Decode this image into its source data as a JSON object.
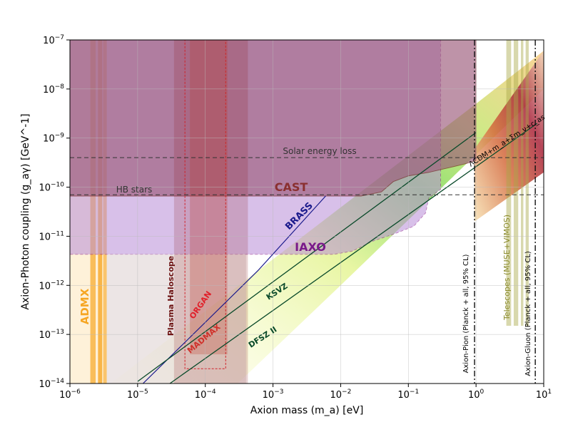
{
  "chart_data": {
    "type": "area",
    "title": "",
    "xlabel": "Axion mass (m_a) [eV]",
    "ylabel": "Axion-Photon coupling (g_aγ) [GeV^-1]",
    "xscale": "log",
    "yscale": "log",
    "xlim": [
      1e-06,
      10
    ],
    "ylim": [
      1e-14,
      1e-07
    ],
    "grid": true,
    "xticks": [
      {
        "base": "10",
        "exp": "−6"
      },
      {
        "base": "10",
        "exp": "−5"
      },
      {
        "base": "10",
        "exp": "−4"
      },
      {
        "base": "10",
        "exp": "−3"
      },
      {
        "base": "10",
        "exp": "−2"
      },
      {
        "base": "10",
        "exp": "−1"
      },
      {
        "base": "10",
        "exp": "0"
      },
      {
        "base": "10",
        "exp": "1"
      }
    ],
    "yticks": [
      {
        "base": "10",
        "exp": "−14"
      },
      {
        "base": "10",
        "exp": "−13"
      },
      {
        "base": "10",
        "exp": "−12"
      },
      {
        "base": "10",
        "exp": "−11"
      },
      {
        "base": "10",
        "exp": "−10"
      },
      {
        "base": "10",
        "exp": "−9"
      },
      {
        "base": "10",
        "exp": "−8"
      },
      {
        "base": "10",
        "exp": "−7"
      }
    ],
    "labels": {
      "admx": "ADMX",
      "plasma_haloscope": "Plasma Haloscope",
      "organ": "ORGAN",
      "madmax": "MADMAX",
      "brass": "BRASS",
      "iaxo": "IAXO",
      "cast": "CAST",
      "solar": "Solar energy loss",
      "hb": "HB stars",
      "ksvz": "KSVZ",
      "dfsz": "DFSZ II",
      "pion": "Axion-Pion (Planck + all, 95% CL)",
      "gluon": "Axion-Gluon (Planck + all, 95% CL)",
      "telescopes": "Telescopes (MUSE+VIMOS)",
      "lcdm": "ΛCDM+m_a+Σm_ν+c_as"
    },
    "reference_lines": {
      "solar_energy_loss_g": 4e-10,
      "hb_stars_g": 7e-11,
      "axion_pion_mass_eV": 0.95,
      "axion_gluon_mass_eV": 7.5
    },
    "cast_boundary": [
      [
        1e-06,
        6.6e-11
      ],
      [
        0.02,
        6.6e-11
      ],
      [
        0.04,
        8e-11
      ],
      [
        0.06,
        1.3e-10
      ],
      [
        0.1,
        1.7e-10
      ],
      [
        0.2,
        2e-10
      ],
      [
        0.4,
        2.5e-10
      ],
      [
        0.7,
        3e-10
      ],
      [
        1.0,
        3.5e-10
      ]
    ],
    "iaxo_boundary": [
      [
        1e-06,
        4.3e-12
      ],
      [
        0.008,
        4.3e-12
      ],
      [
        0.015,
        5e-12
      ],
      [
        0.03,
        8e-12
      ],
      [
        0.06,
        1.1e-11
      ],
      [
        0.12,
        1.6e-11
      ],
      [
        0.18,
        3e-11
      ],
      [
        0.2,
        6e-11
      ],
      [
        0.3,
        9e-11
      ]
    ],
    "brass_line": [
      [
        1.2e-05,
        1e-14
      ],
      [
        0.0006,
        2e-12
      ],
      [
        0.006,
        6.6e-11
      ]
    ],
    "ksvz_line": [
      [
        1e-05,
        1.1e-14
      ],
      [
        1.0,
        1.3e-09
      ]
    ],
    "dfsz_line": [
      [
        3e-05,
        1e-14
      ],
      [
        8.0,
        2e-09
      ]
    ],
    "plasma_haloscope_mass_range_eV": [
      3.5e-05,
      0.00042
    ],
    "organ_mass_range_eV": [
      6e-05,
      0.00021
    ],
    "madmax_mass_range_eV": [
      5e-05,
      0.0002
    ],
    "admx_mass_range_eV": [
      2e-06,
      3.5e-06
    ]
  }
}
